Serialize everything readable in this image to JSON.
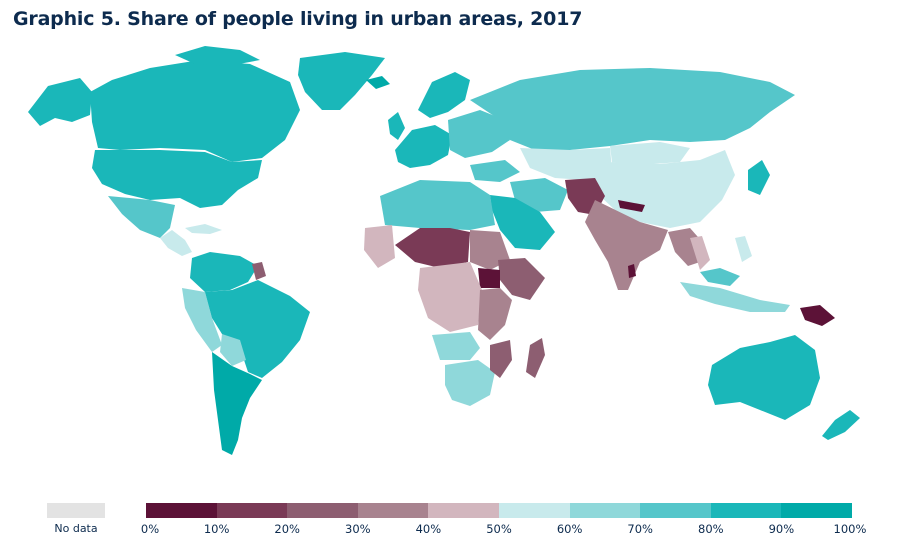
{
  "title": "Graphic 5. Share of people living in urban areas, 2017",
  "legend": {
    "no_data_label": "No data",
    "no_data_color": "#e3e3e3",
    "bins": [
      {
        "label": "0%",
        "color": "#5c1237"
      },
      {
        "label": "10%",
        "color": "#7a3a56"
      },
      {
        "label": "20%",
        "color": "#8d5e71"
      },
      {
        "label": "30%",
        "color": "#a8838f"
      },
      {
        "label": "40%",
        "color": "#d2b6be"
      },
      {
        "label": "50%",
        "color": "#c8eaec"
      },
      {
        "label": "60%",
        "color": "#8fd8da"
      },
      {
        "label": "70%",
        "color": "#55c6ca"
      },
      {
        "label": "80%",
        "color": "#1ab7b9"
      },
      {
        "label": "90%",
        "color": "#00aaa8"
      }
    ],
    "final_label": "100%"
  },
  "colors": {
    "title": "#0d2b4e",
    "ocean": "#ffffff"
  }
}
